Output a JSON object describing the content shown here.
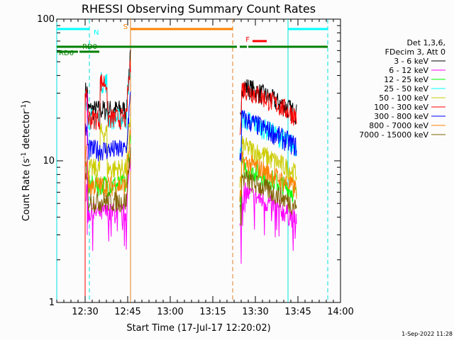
{
  "chart_data": {
    "type": "line",
    "title": "RHESSI Observing Summary Count Rates",
    "xlabel": "Start Time (17-Jul-17 12:20:02)",
    "ylabel": "Count Rate (s",
    "ylabel_sup": "-1",
    "ylabel_tail": " detector",
    "ylabel_close": ")",
    "yscale": "log",
    "ylim": [
      1,
      100
    ],
    "xlim_minutes": [
      0,
      100
    ],
    "x_ticks": [
      {
        "m": 10,
        "label": "12:30"
      },
      {
        "m": 25,
        "label": "12:45"
      },
      {
        "m": 40,
        "label": "13:00"
      },
      {
        "m": 55,
        "label": "13:15"
      },
      {
        "m": 70,
        "label": "13:30"
      },
      {
        "m": 85,
        "label": "13:45"
      },
      {
        "m": 100,
        "label": "14:00"
      }
    ],
    "y_ticks": [
      {
        "v": 1,
        "label": "1"
      },
      {
        "v": 10,
        "label": "10"
      },
      {
        "v": 100,
        "label": "100"
      }
    ],
    "legend": {
      "header": [
        "Det 1,3,6,",
        "FDecim 3, Att 0"
      ],
      "position": "right"
    },
    "series": [
      {
        "name": "3 - 6 keV",
        "color": "#000000",
        "s1": 23,
        "s2": 24
      },
      {
        "name": "6 - 12 keV",
        "color": "#ff00ff",
        "s1": 4.3,
        "s2": 4.3
      },
      {
        "name": "12 - 25 keV",
        "color": "#00ff00",
        "s1": 6.8,
        "s2": 6.5
      },
      {
        "name": "25 - 50 keV",
        "color": "#00ffff",
        "s1": 20,
        "s2": 14
      },
      {
        "name": "50 - 100 keV",
        "color": "#cccc00",
        "s1": 8.8,
        "s2": 9
      },
      {
        "name": "100 - 300 keV",
        "color": "#ff0000",
        "s1": 20,
        "s2": 23
      },
      {
        "name": "300 - 800 keV",
        "color": "#0000ff",
        "s1": 12,
        "s2": 14
      },
      {
        "name": "800 - 7000 keV",
        "color": "#ff8000",
        "s1": 6.7,
        "s2": 7
      },
      {
        "name": "7000 - 15000 keV",
        "color": "#806000",
        "s1": 5.2,
        "s2": 5.3
      }
    ],
    "segment1_minutes": [
      10,
      26
    ],
    "segment2_minutes": [
      64.5,
      84.5
    ],
    "vlines": [
      {
        "m": 0,
        "color": "#00e0e0",
        "dashed": false
      },
      {
        "m": 11.5,
        "color": "#00e0e0",
        "dashed": true
      },
      {
        "m": 26,
        "color": "#e08020",
        "dashed": false
      },
      {
        "m": 62,
        "color": "#e08020",
        "dashed": true
      },
      {
        "m": 81.5,
        "color": "#00e0e0",
        "dashed": false
      },
      {
        "m": 95.5,
        "color": "#00e0e0",
        "dashed": true
      }
    ],
    "flag_bars": [
      {
        "label": "N",
        "color": "#00ffff",
        "level": 1,
        "ranges": [
          [
            0,
            11.5
          ],
          [
            81.5,
            95.5
          ]
        ]
      },
      {
        "label": "S",
        "color": "#ff8000",
        "level": 1,
        "ranges": [
          [
            26,
            62
          ]
        ]
      },
      {
        "label": "F",
        "color": "#ff0000",
        "level": 2,
        "ranges": [
          [
            69,
            74
          ]
        ]
      },
      {
        "label": "RD0",
        "color": "#008000",
        "level": 3,
        "ranges": [
          [
            0,
            24
          ],
          [
            24,
            63.5
          ],
          [
            64.5,
            67
          ],
          [
            67.5,
            95.5
          ]
        ]
      },
      {
        "label": "RD6",
        "color": "#008000",
        "level": 4,
        "ranges": [
          [
            0,
            7.5
          ],
          [
            8,
            15
          ]
        ]
      }
    ]
  },
  "footer_timestamp": "1-Sep-2022 11:28"
}
